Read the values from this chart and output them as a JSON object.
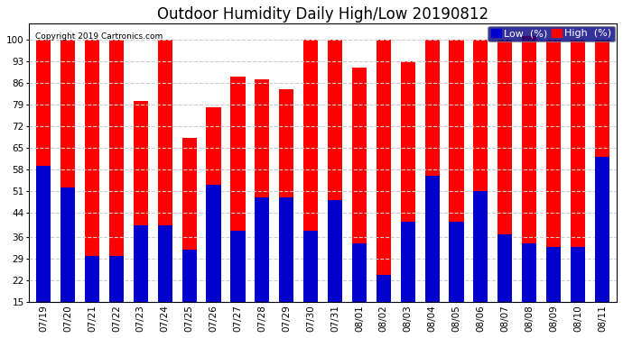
{
  "title": "Outdoor Humidity Daily High/Low 20190812",
  "copyright": "Copyright 2019 Cartronics.com",
  "background_color": "#ffffff",
  "plot_bg_color": "#ffffff",
  "grid_color": "#cccccc",
  "dates": [
    "07/19",
    "07/20",
    "07/21",
    "07/22",
    "07/23",
    "07/24",
    "07/25",
    "07/26",
    "07/27",
    "07/28",
    "07/29",
    "07/30",
    "07/31",
    "08/01",
    "08/02",
    "08/03",
    "08/04",
    "08/05",
    "08/06",
    "08/07",
    "08/08",
    "08/09",
    "08/10",
    "08/11"
  ],
  "high": [
    100,
    100,
    100,
    100,
    80,
    100,
    68,
    78,
    88,
    87,
    84,
    100,
    100,
    91,
    100,
    93,
    100,
    100,
    100,
    100,
    101,
    100,
    100,
    100
  ],
  "low": [
    59,
    52,
    30,
    30,
    40,
    40,
    32,
    53,
    38,
    49,
    49,
    38,
    48,
    34,
    24,
    41,
    56,
    41,
    51,
    37,
    34,
    33,
    33,
    62
  ],
  "high_color": "#ff0000",
  "low_color": "#0000cc",
  "yticks": [
    15,
    22,
    29,
    36,
    44,
    51,
    58,
    65,
    72,
    79,
    86,
    93,
    100
  ],
  "ylim": [
    15,
    105
  ],
  "bar_width": 0.6,
  "title_fontsize": 12,
  "tick_fontsize": 7.5,
  "legend_fontsize": 8
}
